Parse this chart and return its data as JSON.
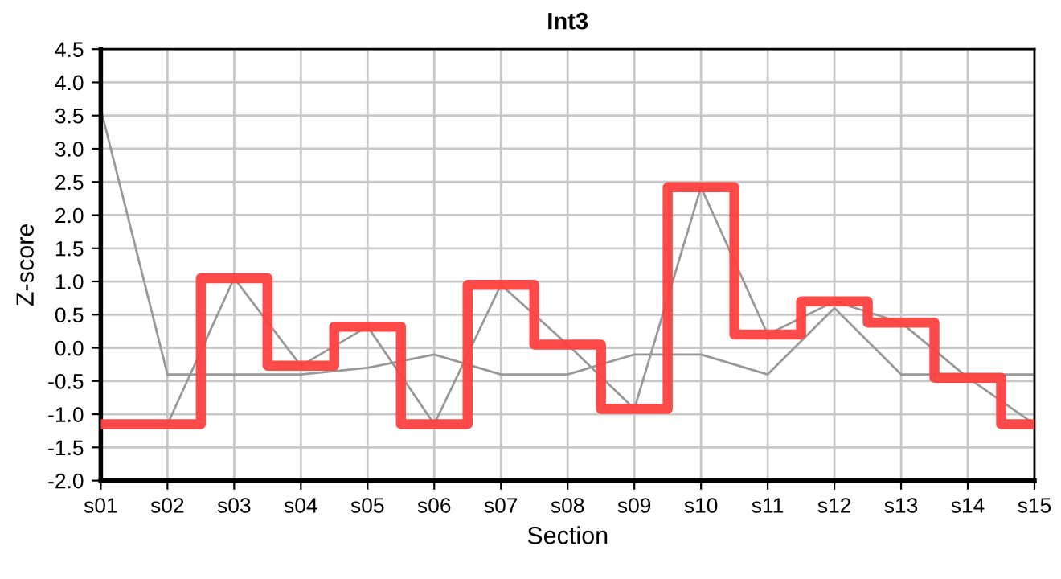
{
  "chart_data": {
    "type": "line",
    "title": "Int3",
    "xlabel": "Section",
    "ylabel": "Z-score",
    "categories": [
      "s01",
      "s02",
      "s03",
      "s04",
      "s05",
      "s06",
      "s07",
      "s08",
      "s09",
      "s10",
      "s11",
      "s12",
      "s13",
      "s14",
      "s15"
    ],
    "series": [
      {
        "color": "#999999",
        "values": [
          3.6,
          -0.4,
          -0.4,
          -0.4,
          -0.3,
          -0.1,
          -0.4,
          -0.4,
          -0.1,
          -0.1,
          -0.4,
          0.6,
          -0.4,
          -0.4,
          -0.4
        ]
      },
      {
        "color": "#999999",
        "values": [
          -1.15,
          -1.15,
          1.05,
          -0.27,
          0.32,
          -1.15,
          0.95,
          0.05,
          -0.92,
          2.42,
          0.2,
          0.7,
          0.38,
          -0.45,
          -1.15
        ]
      },
      {
        "type": "step",
        "color": "#ff4040",
        "values": [
          -1.15,
          -1.15,
          1.05,
          -0.27,
          0.32,
          -1.15,
          0.95,
          0.05,
          -0.92,
          2.42,
          0.2,
          0.7,
          0.38,
          -0.45,
          -1.15
        ]
      }
    ],
    "ylim": [
      -2.0,
      4.5
    ],
    "yticks": [
      {
        "value": -2.0,
        "label": "-2.0"
      },
      {
        "value": -1.5,
        "label": "-1.5"
      },
      {
        "value": -1.0,
        "label": "-1.0"
      },
      {
        "value": -0.5,
        "label": "-0.5"
      },
      {
        "value": 0.0,
        "label": "0.0"
      },
      {
        "value": 0.5,
        "label": "0.5"
      },
      {
        "value": 1.0,
        "label": "1.0"
      },
      {
        "value": 1.5,
        "label": "1.5"
      },
      {
        "value": 2.0,
        "label": "2.0"
      },
      {
        "value": 2.5,
        "label": "2.5"
      },
      {
        "value": 3.0,
        "label": "3.0"
      },
      {
        "value": 3.5,
        "label": "3.5"
      },
      {
        "value": 4.0,
        "label": "4.0"
      },
      {
        "value": 4.5,
        "label": "4.5"
      }
    ],
    "grid": true,
    "legend": false
  }
}
